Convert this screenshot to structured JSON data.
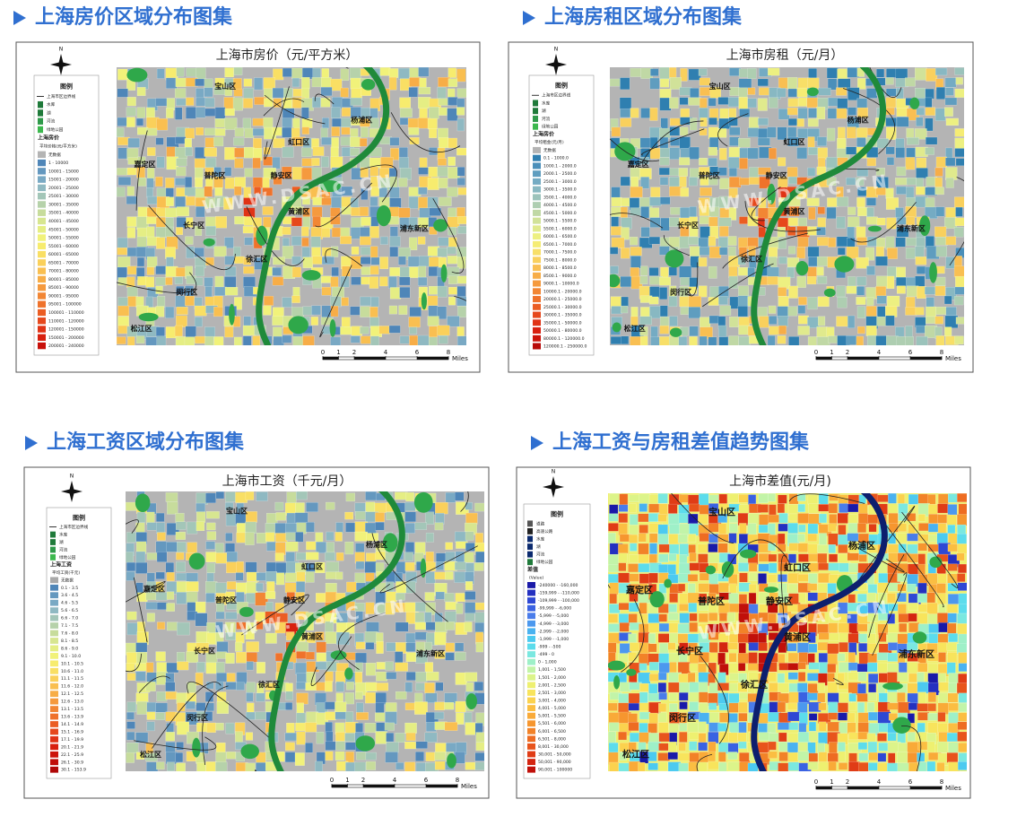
{
  "north": "N",
  "watermark": "WWW.DSAC.CN",
  "scale": {
    "ticks": [
      0,
      1,
      2,
      4,
      6,
      8
    ],
    "unit": "Miles"
  },
  "districts": [
    "宝山区",
    "杨浦区",
    "虹口区",
    "嘉定区",
    "普陀区",
    "静安区",
    "黄浦区",
    "浦东新区",
    "长宁区",
    "徐汇区",
    "闵行区",
    "松江区"
  ],
  "panels": [
    {
      "heading": "上海房价区域分布图集",
      "map_title": "上海市房价（元/平方米）",
      "legend": {
        "title": "图例",
        "layers": [
          {
            "label": "上海市区边界线",
            "color": "#000000"
          },
          {
            "label": "水库",
            "color": "#1f7a3a"
          },
          {
            "label": "湖",
            "color": "#1f7a3a"
          },
          {
            "label": "河流",
            "color": "#2f9a4a"
          },
          {
            "label": "绿地公园",
            "color": "#3cb84e"
          }
        ],
        "section": "上海房价",
        "unit": "平均价格(元/平方米)",
        "classes": [
          {
            "label": "无数据",
            "color": "#b4b4b4"
          },
          {
            "label": "1 - 10000",
            "color": "#4f86b8"
          },
          {
            "label": "10001 - 15000",
            "color": "#6498bf"
          },
          {
            "label": "15001 - 20000",
            "color": "#79a9c4"
          },
          {
            "label": "20001 - 25000",
            "color": "#8fb9c2"
          },
          {
            "label": "25001 - 30000",
            "color": "#a3c6b8"
          },
          {
            "label": "30001 - 35000",
            "color": "#b6d2aa"
          },
          {
            "label": "35001 - 40000",
            "color": "#c7dc9c"
          },
          {
            "label": "40001 - 45000",
            "color": "#d7e690"
          },
          {
            "label": "45001 - 50000",
            "color": "#e5ee84"
          },
          {
            "label": "50001 - 55000",
            "color": "#f1f27a"
          },
          {
            "label": "55001 - 60000",
            "color": "#f7ec6e"
          },
          {
            "label": "60001 - 65000",
            "color": "#f9df64"
          },
          {
            "label": "65001 - 70000",
            "color": "#fad05a"
          },
          {
            "label": "70001 - 80000",
            "color": "#f9bf50"
          },
          {
            "label": "80001 - 85000",
            "color": "#f7ad47"
          },
          {
            "label": "85001 - 90000",
            "color": "#f59a3e"
          },
          {
            "label": "90001 - 95000",
            "color": "#f28634"
          },
          {
            "label": "95001 - 100000",
            "color": "#ef722b"
          },
          {
            "label": "100001 - 110000",
            "color": "#eb5d23"
          },
          {
            "label": "110001 - 120000",
            "color": "#e6481c"
          },
          {
            "label": "120001 - 150000",
            "color": "#e03315"
          },
          {
            "label": "150001 - 200000",
            "color": "#d8200f"
          },
          {
            "label": "200001 - 240000",
            "color": "#c8100a"
          }
        ]
      }
    },
    {
      "heading": "上海房租区域分布图集",
      "map_title": "上海市房租（元/月）",
      "legend": {
        "title": "图例",
        "layers": [
          {
            "label": "上海市区边界线",
            "color": "#000000"
          },
          {
            "label": "水库",
            "color": "#1f7a3a"
          },
          {
            "label": "湖",
            "color": "#1f7a3a"
          },
          {
            "label": "河流",
            "color": "#2f9a4a"
          },
          {
            "label": "绿地公园",
            "color": "#3cb84e"
          }
        ],
        "section": "上海房价",
        "unit": "平均租金(元/月)",
        "classes": [
          {
            "label": "无数据",
            "color": "#b4b4b4"
          },
          {
            "label": "0.1 - 1000.0",
            "color": "#2f7fb0"
          },
          {
            "label": "1000.1 - 2000.0",
            "color": "#4a8fba"
          },
          {
            "label": "2000.1 - 2500.0",
            "color": "#5f9dbf"
          },
          {
            "label": "2500.1 - 3000.0",
            "color": "#74abc3"
          },
          {
            "label": "3000.1 - 3500.0",
            "color": "#88b8c2"
          },
          {
            "label": "3500.1 - 4000.0",
            "color": "#9bc3bb"
          },
          {
            "label": "4000.1 - 4500.0",
            "color": "#aeceb1"
          },
          {
            "label": "4500.1 - 5000.0",
            "color": "#c0d8a5"
          },
          {
            "label": "5000.1 - 5500.0",
            "color": "#d1e299"
          },
          {
            "label": "5500.1 - 6000.0",
            "color": "#e0ea8d"
          },
          {
            "label": "6000.1 - 6500.0",
            "color": "#edf081"
          },
          {
            "label": "6500.1 - 7000.0",
            "color": "#f5ec74"
          },
          {
            "label": "7000.1 - 7500.0",
            "color": "#f8df68"
          },
          {
            "label": "7500.1 - 8000.0",
            "color": "#f9d05d"
          },
          {
            "label": "8000.1 - 8500.0",
            "color": "#f9bf52"
          },
          {
            "label": "8500.1 - 9000.0",
            "color": "#f7ad48"
          },
          {
            "label": "9000.1 - 10000.0",
            "color": "#f59a3e"
          },
          {
            "label": "10000.1 - 20000.0",
            "color": "#f28634"
          },
          {
            "label": "20000.1 - 25000.0",
            "color": "#ef722b"
          },
          {
            "label": "25000.1 - 30000.0",
            "color": "#eb5d23"
          },
          {
            "label": "30000.1 - 35000.0",
            "color": "#e6481c"
          },
          {
            "label": "35000.1 - 50000.0",
            "color": "#e03315"
          },
          {
            "label": "50000.1 - 80000.0",
            "color": "#d8200f"
          },
          {
            "label": "80000.1 - 120000.0",
            "color": "#cc140b"
          },
          {
            "label": "120000.1 - 250000.0",
            "color": "#b80a08"
          }
        ]
      }
    },
    {
      "heading": "上海工资区域分布图集",
      "map_title": "上海市工资（千元/月）",
      "legend": {
        "title": "图例",
        "layers": [
          {
            "label": "上海市区边界线",
            "color": "#000000"
          },
          {
            "label": "水库",
            "color": "#1f7a3a"
          },
          {
            "label": "湖",
            "color": "#1f7a3a"
          },
          {
            "label": "河流",
            "color": "#2f9a4a"
          },
          {
            "label": "绿地公园",
            "color": "#3cb84e"
          }
        ],
        "section": "上海工资",
        "unit": "平均工资(千元)",
        "classes": [
          {
            "label": "无数据",
            "color": "#a9a9a9"
          },
          {
            "label": "0.1 - 3.5",
            "color": "#4f86b8"
          },
          {
            "label": "3.6 - 4.5",
            "color": "#6498bf"
          },
          {
            "label": "4.6 - 5.5",
            "color": "#79a9c4"
          },
          {
            "label": "5.6 - 6.5",
            "color": "#8fb9c2"
          },
          {
            "label": "6.6 - 7.0",
            "color": "#a3c6b8"
          },
          {
            "label": "7.1 - 7.5",
            "color": "#b6d2aa"
          },
          {
            "label": "7.6 - 8.0",
            "color": "#c7dc9c"
          },
          {
            "label": "8.1 - 8.5",
            "color": "#d7e690"
          },
          {
            "label": "8.6 - 9.0",
            "color": "#e5ee84"
          },
          {
            "label": "9.1 - 10.0",
            "color": "#f1f27a"
          },
          {
            "label": "10.1 - 10.5",
            "color": "#f7ec6e"
          },
          {
            "label": "10.6 - 11.0",
            "color": "#f9df64"
          },
          {
            "label": "11.1 - 11.5",
            "color": "#fad05a"
          },
          {
            "label": "11.6 - 12.0",
            "color": "#f9bf50"
          },
          {
            "label": "12.1 - 12.5",
            "color": "#f7ad47"
          },
          {
            "label": "12.6 - 13.0",
            "color": "#f59a3e"
          },
          {
            "label": "13.1 - 13.5",
            "color": "#f28634"
          },
          {
            "label": "13.6 - 13.9",
            "color": "#ef722b"
          },
          {
            "label": "14.1 - 14.9",
            "color": "#eb5d23"
          },
          {
            "label": "15.1 - 16.9",
            "color": "#e6481c"
          },
          {
            "label": "17.1 - 19.9",
            "color": "#e03315"
          },
          {
            "label": "20.1 - 21.9",
            "color": "#d8200f"
          },
          {
            "label": "22.1 - 25.9",
            "color": "#cc140b"
          },
          {
            "label": "26.1 - 30.9",
            "color": "#c00d09"
          },
          {
            "label": "30.1 - 153.9",
            "color": "#b00808"
          }
        ]
      }
    },
    {
      "heading": "上海工资与房租差值趋势图集",
      "map_title": "上海市差值(元/月)",
      "legend": {
        "title": "图例",
        "layers": [
          {
            "label": "道路",
            "color": "#555555"
          },
          {
            "label": "高速公路",
            "color": "#222222"
          },
          {
            "label": "水库",
            "color": "#0b2a6e"
          },
          {
            "label": "湖",
            "color": "#0b2a6e"
          },
          {
            "label": "河流",
            "color": "#0b2a6e"
          },
          {
            "label": "绿地公园",
            "color": "#1f7a3a"
          }
        ],
        "section": "差值",
        "unit": "(Value)",
        "classes": [
          {
            "label": "-240000 - -160,000",
            "color": "#1a1aa8"
          },
          {
            "label": "-159,999 - -110,000",
            "color": "#2430c0"
          },
          {
            "label": "-109,999 - -100,000",
            "color": "#2e48d4"
          },
          {
            "label": "-99,999 - -6,000",
            "color": "#3a62e2"
          },
          {
            "label": "-5,999 - -5,000",
            "color": "#4a7cea"
          },
          {
            "label": "-4,999 - -3,000",
            "color": "#4c98ee"
          },
          {
            "label": "-2,999 - -2,000",
            "color": "#4ab2f0"
          },
          {
            "label": "-1,999 - -1,000",
            "color": "#4ccaf0"
          },
          {
            "label": "-999 - -500",
            "color": "#5cdcec"
          },
          {
            "label": "-499 - 0",
            "color": "#7ae8e0"
          },
          {
            "label": "0 - 1,000",
            "color": "#9ef0c8"
          },
          {
            "label": "1,001 - 1,500",
            "color": "#c2f4a8"
          },
          {
            "label": "1,501 - 2,000",
            "color": "#dcf48a"
          },
          {
            "label": "2,001 - 2,500",
            "color": "#eef070"
          },
          {
            "label": "2,501 - 3,000",
            "color": "#f8e45c"
          },
          {
            "label": "3,001 - 4,000",
            "color": "#fbd24e"
          },
          {
            "label": "4,001 - 5,000",
            "color": "#fbbe42"
          },
          {
            "label": "5,001 - 5,500",
            "color": "#f9aa38"
          },
          {
            "label": "5,501 - 6,000",
            "color": "#f6962f"
          },
          {
            "label": "6,001 - 6,500",
            "color": "#f28228"
          },
          {
            "label": "6,501 - 8,000",
            "color": "#ee6c22"
          },
          {
            "label": "8,001 - 30,000",
            "color": "#e8541c"
          },
          {
            "label": "30,001 - 50,000",
            "color": "#e03c16"
          },
          {
            "label": "50,001 - 90,000",
            "color": "#d42410"
          },
          {
            "label": "90,001 - 100000",
            "color": "#c0100a"
          }
        ]
      }
    }
  ]
}
